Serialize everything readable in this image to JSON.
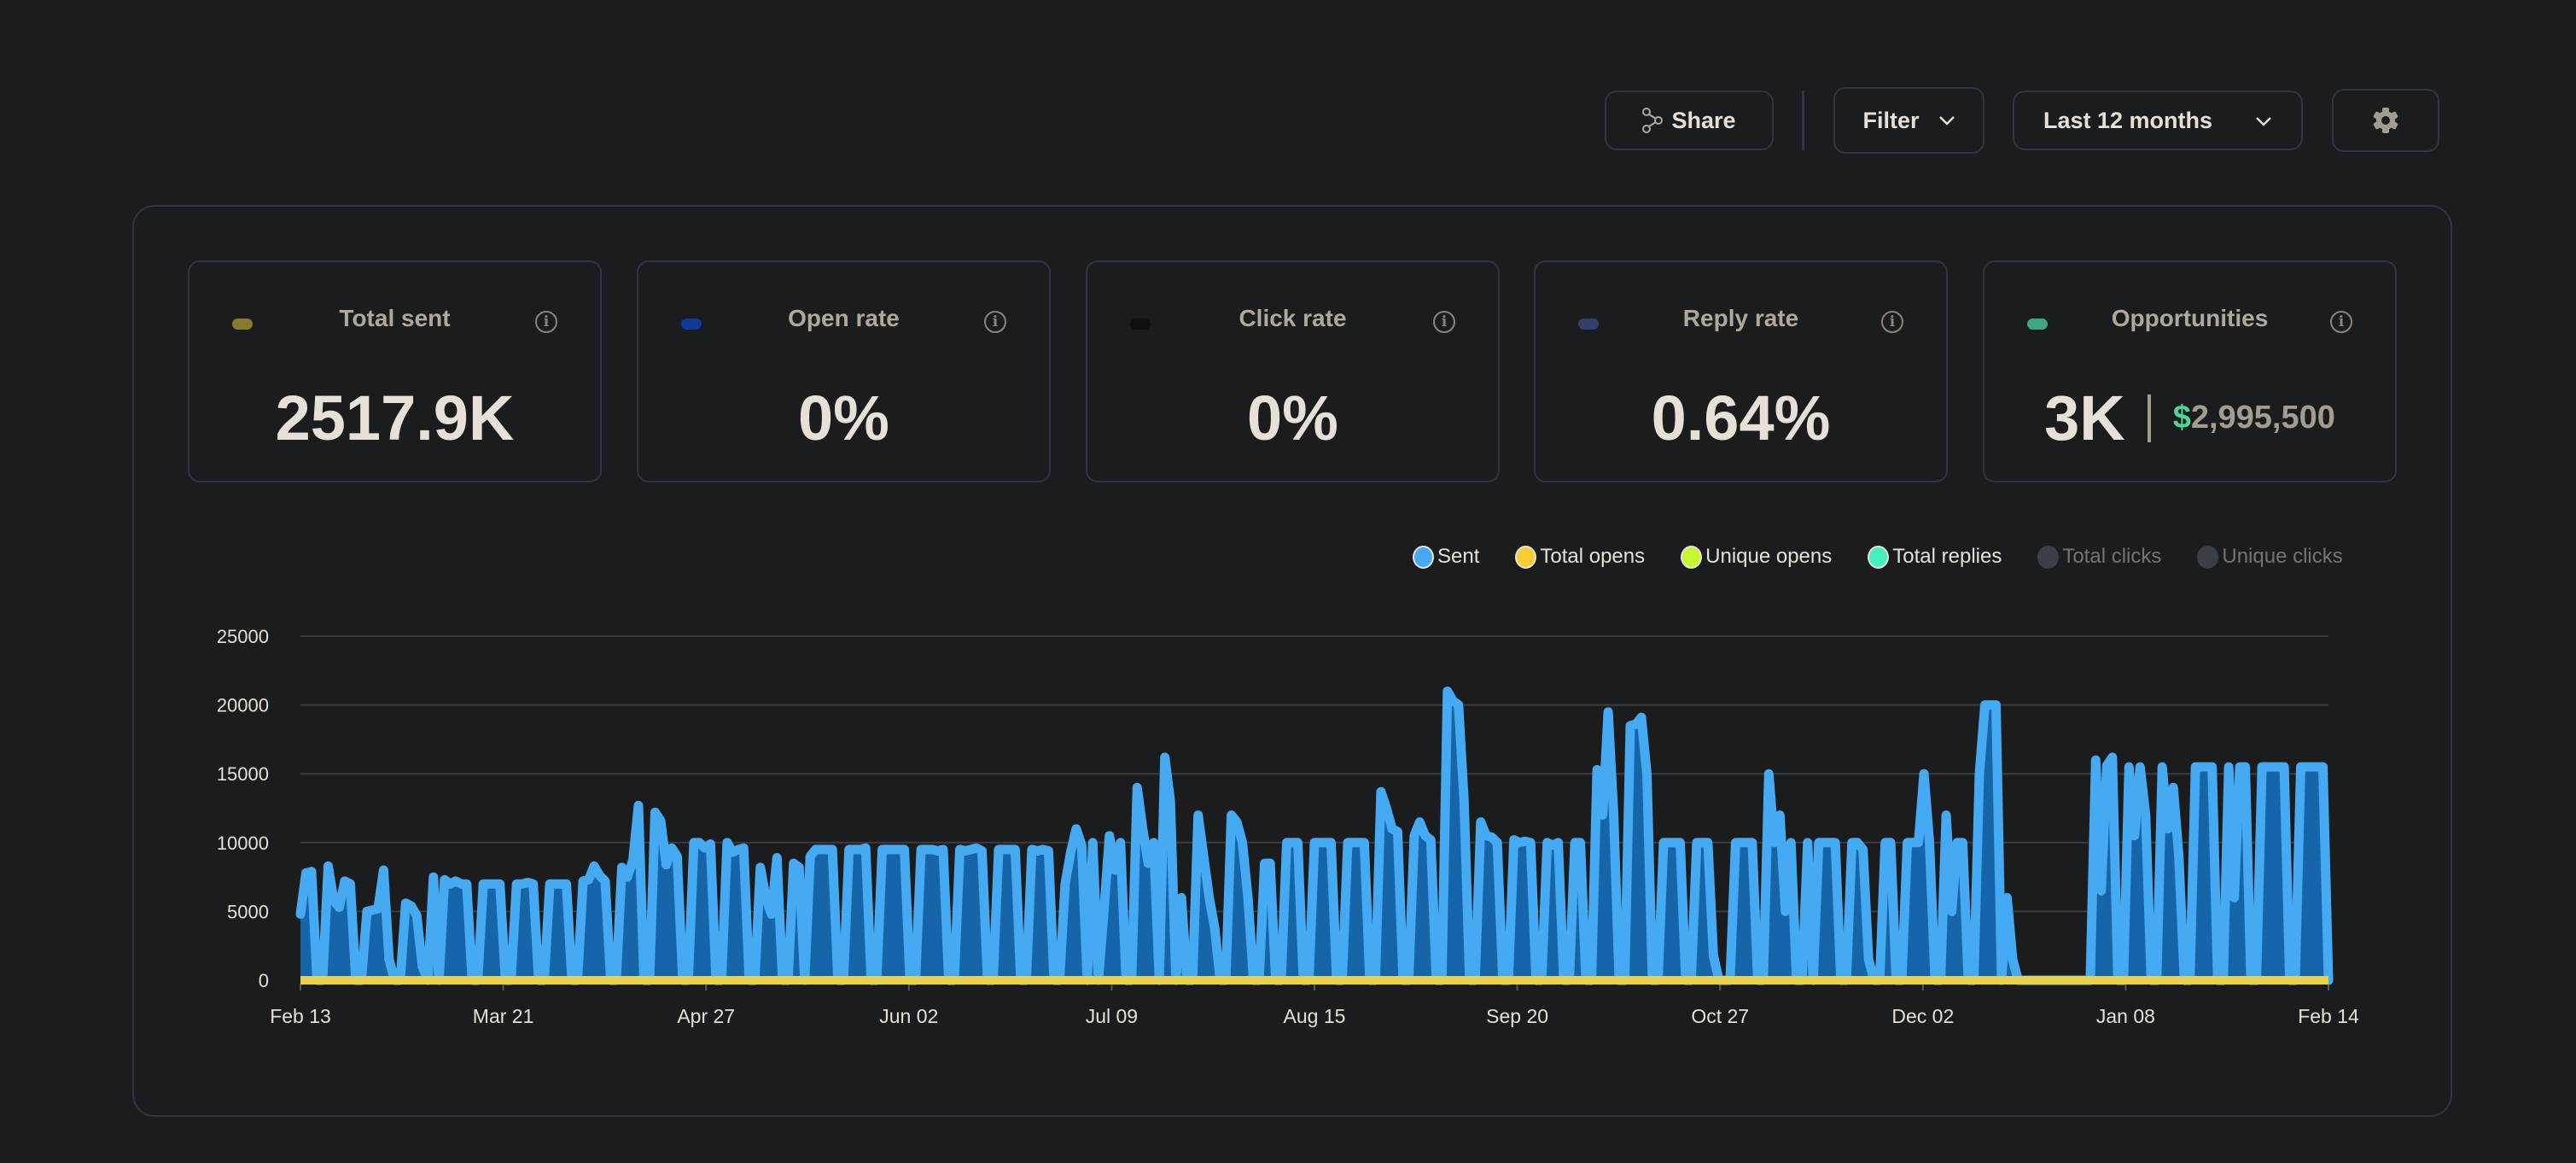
{
  "toolbar": {
    "share_label": "Share",
    "filter_label": "Filter",
    "range_label": "Last 12 months",
    "icons": {
      "share": "share-nodes-icon",
      "chevron": "chevron-down-icon",
      "settings": "gear-icon"
    }
  },
  "cards": [
    {
      "title": "Total sent",
      "value": "2517.9K",
      "color": "#8a7a2e"
    },
    {
      "title": "Open rate",
      "value": "0%",
      "color": "#0f3a9c"
    },
    {
      "title": "Click rate",
      "value": "0%",
      "color": "#0e0f10"
    },
    {
      "title": "Reply rate",
      "value": "0.64%",
      "color": "#34406b"
    },
    {
      "title": "Opportunities",
      "value": "3K",
      "currency": "$",
      "amount": "2,995,500",
      "color": "#3fa585"
    }
  ],
  "chart_data": {
    "type": "area",
    "x_start": "Feb 13",
    "x_end": "Feb 14",
    "x_tick_labels": [
      "Feb 13",
      "Mar 21",
      "Apr 27",
      "Jun 02",
      "Jul 09",
      "Aug 15",
      "Sep 20",
      "Oct 27",
      "Dec 02",
      "Jan 08",
      "Feb 14"
    ],
    "y_tick_labels": [
      "0",
      "5000",
      "10000",
      "15000",
      "20000",
      "25000"
    ],
    "ylim": [
      0,
      25000
    ],
    "grid": true,
    "legend_position": "top-right",
    "legend": [
      {
        "name": "Sent",
        "color": "#45aaf2",
        "active": true
      },
      {
        "name": "Total opens",
        "color": "#f7cc35",
        "active": true
      },
      {
        "name": "Unique opens",
        "color": "#c8f531",
        "active": true
      },
      {
        "name": "Total replies",
        "color": "#45f0bf",
        "active": true
      },
      {
        "name": "Total clicks",
        "color": "#3b3f47",
        "active": false
      },
      {
        "name": "Unique clicks",
        "color": "#3b3f47",
        "active": false
      }
    ],
    "series": [
      {
        "name": "Sent",
        "color": "#45aaf2",
        "fill": "#1565a8",
        "values": [
          4800,
          7800,
          7900,
          0,
          0,
          8300,
          5800,
          5300,
          7200,
          7000,
          0,
          0,
          5000,
          5100,
          5200,
          8000,
          1500,
          0,
          0,
          5600,
          5400,
          4700,
          1000,
          0,
          7500,
          0,
          7300,
          7000,
          7200,
          7000,
          7000,
          0,
          0,
          7000,
          7000,
          7000,
          7000,
          0,
          0,
          7000,
          7000,
          7100,
          7000,
          0,
          0,
          7000,
          7000,
          7000,
          7000,
          0,
          0,
          7200,
          7300,
          8300,
          7600,
          7200,
          0,
          0,
          8200,
          7500,
          8700,
          12700,
          0,
          0,
          12200,
          11600,
          8400,
          9600,
          9000,
          0,
          0,
          10000,
          10000,
          9600,
          9900,
          0,
          0,
          10000,
          9300,
          9500,
          9600,
          0,
          0,
          8200,
          6000,
          4800,
          8900,
          0,
          0,
          8500,
          8200,
          0,
          9000,
          9500,
          9500,
          9500,
          9500,
          0,
          0,
          9500,
          9500,
          9500,
          9600,
          0,
          0,
          9500,
          9500,
          9500,
          9500,
          9500,
          0,
          0,
          9500,
          9500,
          9500,
          9400,
          9500,
          0,
          0,
          9500,
          9400,
          9500,
          9600,
          9400,
          0,
          0,
          9500,
          9500,
          9500,
          9500,
          0,
          0,
          9500,
          9400,
          9500,
          9400,
          0,
          0,
          7000,
          9300,
          11000,
          9800,
          0,
          10000,
          0,
          5000,
          10500,
          8000,
          10000,
          0,
          0,
          14000,
          11000,
          8500,
          10000,
          0,
          16200,
          13000,
          0,
          6000,
          0,
          0,
          12000,
          9000,
          6000,
          3800,
          0,
          0,
          12000,
          11500,
          10000,
          6000,
          0,
          0,
          8500,
          8500,
          0,
          0,
          10000,
          10000,
          10000,
          0,
          0,
          10000,
          10000,
          10000,
          10000,
          0,
          0,
          10000,
          10000,
          10000,
          10000,
          0,
          0,
          13700,
          12500,
          11000,
          10800,
          0,
          0,
          10500,
          11500,
          10500,
          10200,
          0,
          0,
          21000,
          20300,
          20000,
          13000,
          0,
          0,
          11500,
          10500,
          10400,
          10000,
          0,
          0,
          10200,
          10000,
          10100,
          10000,
          0,
          0,
          10000,
          9800,
          10000,
          0,
          0,
          10000,
          10000,
          0,
          0,
          15300,
          12000,
          19500,
          12000,
          0,
          0,
          18500,
          18600,
          19100,
          15000,
          0,
          0,
          10000,
          10000,
          10000,
          10000,
          0,
          0,
          10000,
          10000,
          10000,
          1800,
          0,
          0,
          0,
          10000,
          10000,
          10000,
          10000,
          0,
          0,
          15000,
          10000,
          12000,
          5000,
          10000,
          0,
          0,
          10000,
          0,
          10000,
          10000,
          10000,
          10000,
          0,
          0,
          10000,
          10000,
          9500,
          1500,
          0,
          0,
          10000,
          10000,
          0,
          0,
          10000,
          10000,
          10000,
          15000,
          10000,
          0,
          0,
          12000,
          5000,
          10000,
          10000,
          0,
          0,
          15000,
          20000,
          20000,
          20000,
          0,
          6000,
          1500,
          0,
          0,
          0,
          0,
          0,
          0,
          0,
          0,
          0,
          0,
          0,
          0,
          0,
          0,
          16000,
          6500,
          15600,
          16200,
          0,
          0,
          15500,
          10500,
          15500,
          12000,
          0,
          0,
          15500,
          11000,
          14000,
          9000,
          0,
          0,
          15500,
          15500,
          15500,
          15500,
          0,
          0,
          15500,
          6000,
          15500,
          15500,
          0,
          0,
          15500,
          15500,
          15500,
          15500,
          15500,
          0,
          0,
          15500,
          15500,
          15500,
          15500,
          15500,
          0
        ]
      },
      {
        "name": "Total opens",
        "color": "#e6cf4a",
        "constant": 0
      },
      {
        "name": "Unique opens",
        "color": "#c8f531",
        "constant": 0
      },
      {
        "name": "Total replies",
        "color": "#45f0bf",
        "constant": 0
      }
    ]
  }
}
